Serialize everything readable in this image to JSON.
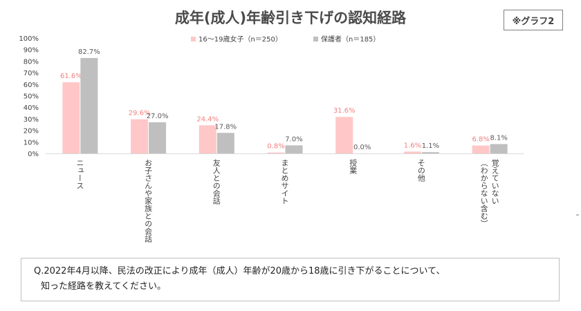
{
  "badge": "※グラフ2",
  "question": {
    "line1": "Q.2022年4月以降、民法の改正により成年（成人）年齢が20歳から18歳に引き下がることについて、",
    "line2": "知った経路を教えてください。"
  },
  "colors": {
    "series1": "#ffc7c7",
    "series2": "#bfbfbf",
    "label1": "#f08080",
    "label2": "#595959",
    "axis": "#d9d9d9",
    "text": "#404040"
  },
  "chart_data": {
    "type": "bar",
    "title": "成年(成人)年齢引き下げの認知経路",
    "categories": [
      "ニュース",
      "お子さんや家族との会話",
      "友人との会話",
      "まとめサイト",
      "授業",
      "その他",
      "覚えていない（わからない含む）"
    ],
    "series": [
      {
        "name": "16～19歳女子（n＝250）",
        "values": [
          61.6,
          29.6,
          24.4,
          0.8,
          31.6,
          1.6,
          6.8
        ]
      },
      {
        "name": "保護者（n＝185）",
        "values": [
          82.7,
          27.0,
          17.8,
          7.0,
          0.0,
          1.1,
          8.1
        ]
      }
    ],
    "ylim": [
      0,
      100
    ],
    "yticks": [
      "0%",
      "10%",
      "20%",
      "30%",
      "40%",
      "50%",
      "60%",
      "70%",
      "80%",
      "90%",
      "100%"
    ],
    "value_suffix": "%",
    "grid": false,
    "legend_position": "top"
  }
}
